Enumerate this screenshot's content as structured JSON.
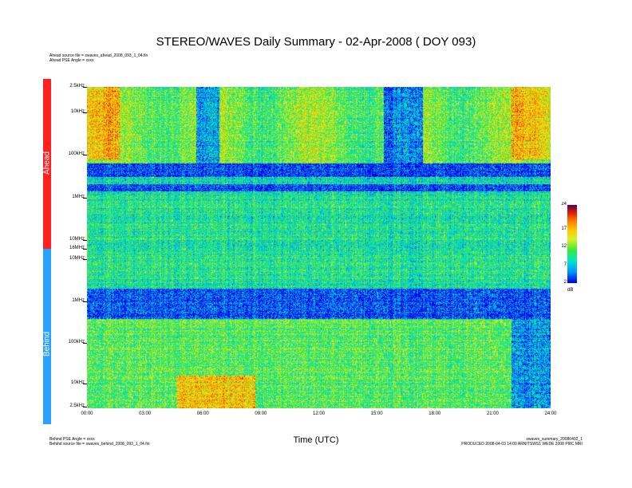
{
  "title": "STEREO/WAVES Daily Summary - 02-Apr-2008 ( DOY 093)",
  "ahead_info": [
    "Ahead source file = swaves_ahead_2008_093_1_04.fin",
    "Ahead PSE Angle = xxxx"
  ],
  "behind_info": [
    "Behind PSE Angle = xxxx",
    "Behind source file = swaves_behind_2008_093_1_04.fin"
  ],
  "footer_right": [
    "swaves_summary_20080402_1",
    "PRODUCED 2008-04-03 14:00 ARNITSWS1 WEDE 2008 PI8C MRI"
  ],
  "side_labels": {
    "ahead": "Ahead",
    "behind": "Behind"
  },
  "colors": {
    "ahead": "#ff2020",
    "behind": "#2aa0ff"
  },
  "chart_data": {
    "type": "heatmap",
    "xlabel": "Time (UTC)",
    "x_ticks": [
      "00:00",
      "03:00",
      "06:00",
      "09:00",
      "12:00",
      "15:00",
      "18:00",
      "21:00",
      "24:00"
    ],
    "xlim": [
      "00:00",
      "24:00"
    ],
    "panels": [
      {
        "name": "Ahead",
        "y_ticks": [
          "2.5kHz",
          "10kHz",
          "100kHz",
          "1MHz",
          "10MHz",
          "16MHz"
        ]
      },
      {
        "name": "Behind",
        "y_ticks": [
          "10MHz",
          "1MHz",
          "100kHz",
          "10kHz",
          "2.5kHz"
        ]
      }
    ],
    "colorbar": {
      "ticks": [
        24,
        17,
        12,
        7,
        2
      ],
      "unit": "dB",
      "range": [
        2,
        24
      ]
    }
  }
}
